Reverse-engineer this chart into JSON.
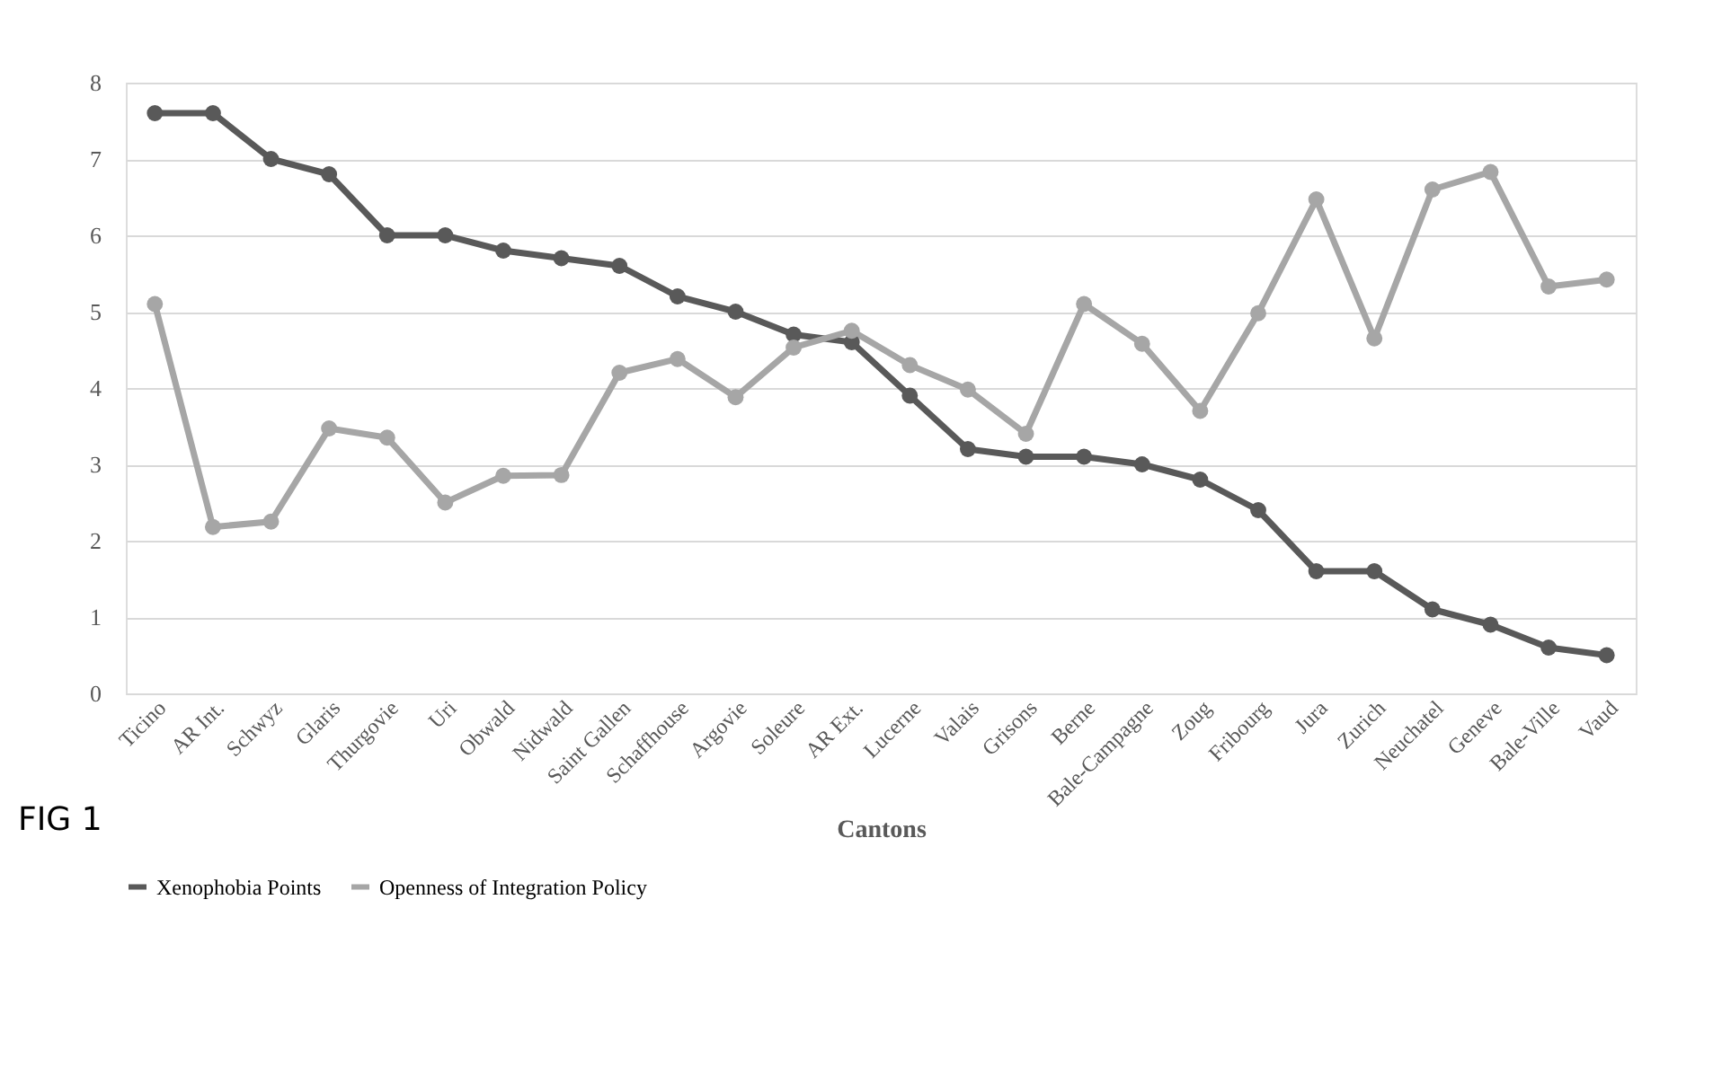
{
  "chart_data": {
    "type": "line",
    "xlabel": "Cantons",
    "categories": [
      "Ticino",
      "AR Int.",
      "Schwyz",
      "Glaris",
      "Thurgovie",
      "Uri",
      "Obwald",
      "Nidwald",
      "Saint Gallen",
      "Schaffhouse",
      "Argovie",
      "Soleure",
      "AR Ext.",
      "Lucerne",
      "Valais",
      "Grisons",
      "Berne",
      "Bale-Campagne",
      "Zoug",
      "Fribourg",
      "Jura",
      "Zurich",
      "Neuchatel",
      "Geneve",
      "Bale-Ville",
      "Vaud"
    ],
    "series": [
      {
        "name": "Xenophobia Points",
        "color": "#595959",
        "values": [
          7.6,
          7.6,
          7.0,
          6.8,
          6.0,
          6.0,
          5.8,
          5.7,
          5.6,
          5.2,
          5.0,
          4.7,
          4.6,
          3.9,
          3.2,
          3.1,
          3.1,
          3.0,
          2.8,
          2.4,
          1.6,
          1.6,
          1.1,
          0.9,
          0.6,
          0.5
        ]
      },
      {
        "name": "Openness of Integration Policy",
        "color": "#a6a6a6",
        "values": [
          5.1,
          2.18,
          2.25,
          3.47,
          3.35,
          2.5,
          2.85,
          2.86,
          4.2,
          4.38,
          3.88,
          4.53,
          4.75,
          4.3,
          3.98,
          3.4,
          5.1,
          4.58,
          3.7,
          4.98,
          6.47,
          4.65,
          6.6,
          6.83,
          5.33,
          5.42
        ]
      }
    ],
    "ylim": [
      0,
      8
    ],
    "yticks": [
      0,
      1,
      2,
      3,
      4,
      5,
      6,
      7,
      8
    ],
    "grid": "y",
    "legend": "bottom",
    "marker": "circle",
    "line_style": "solid",
    "annotations": [
      "FIG 1"
    ]
  }
}
